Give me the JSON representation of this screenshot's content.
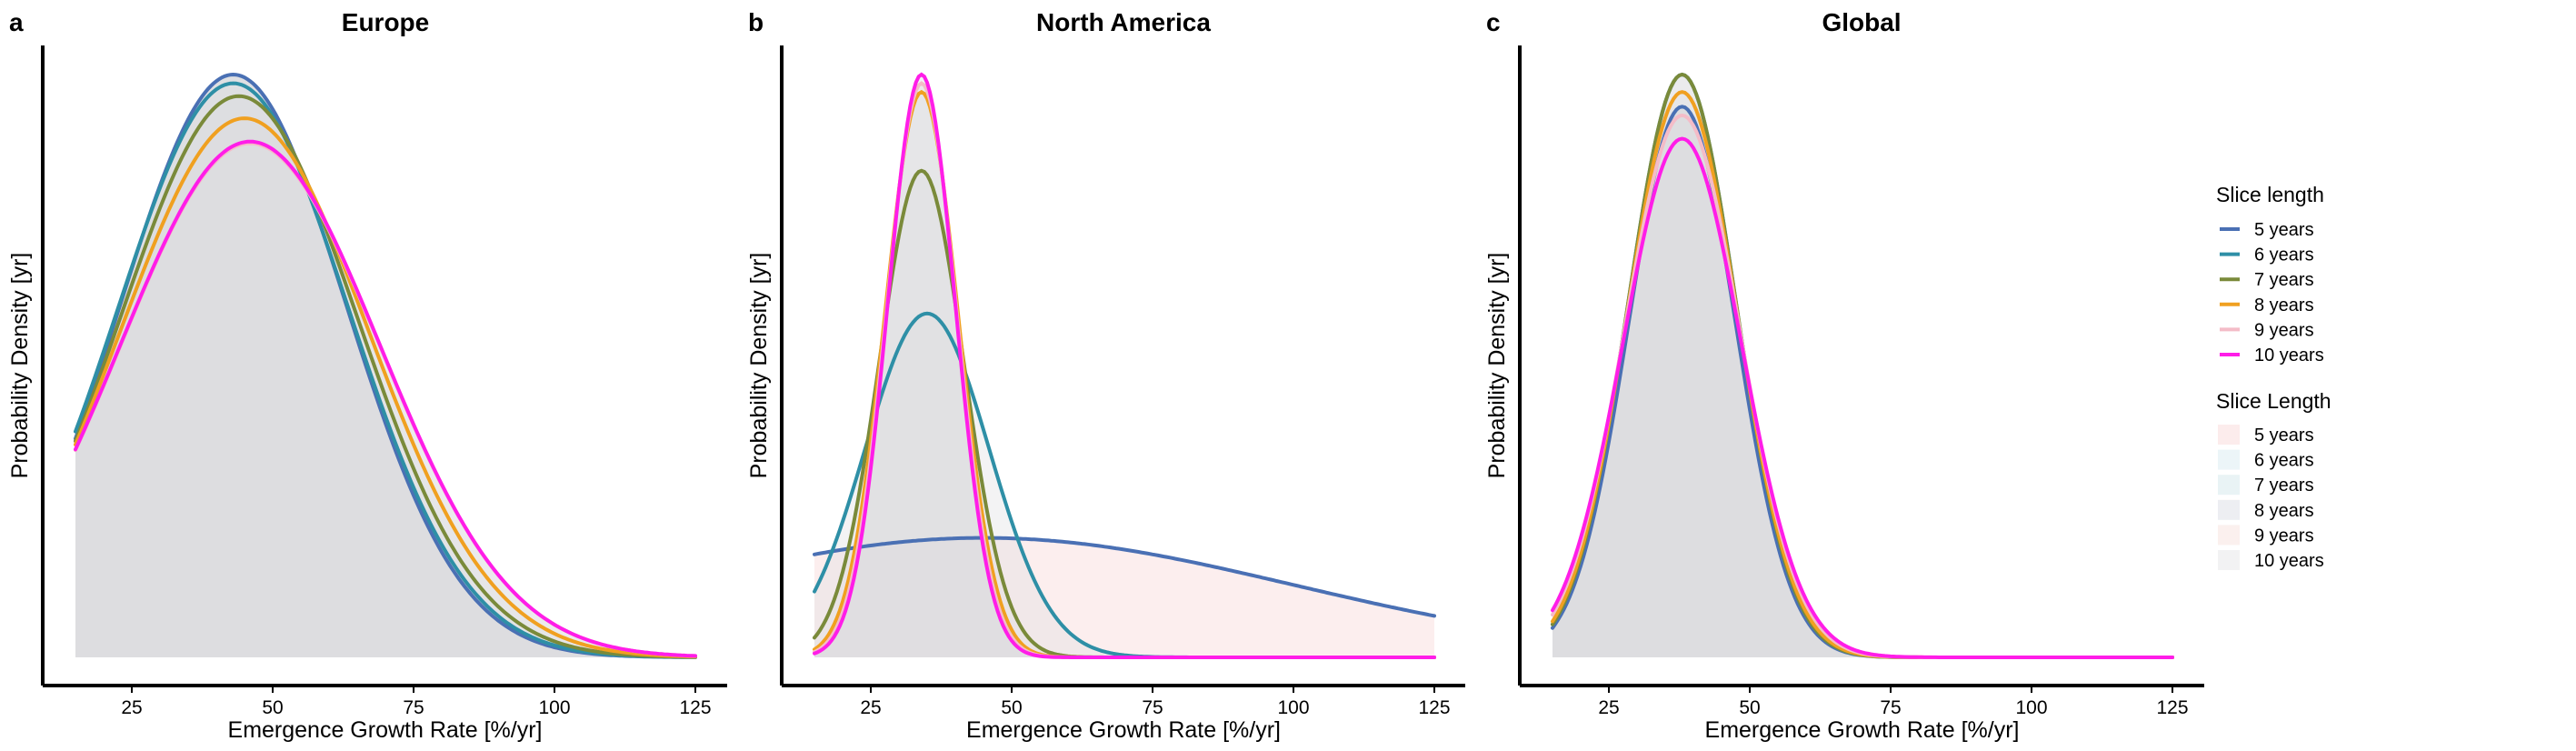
{
  "chart_data": [
    {
      "type": "area",
      "panel_label": "a",
      "title": "Europe",
      "xlabel": "Emergence Growth Rate [%/yr]",
      "ylabel": "Probability Density [yr]",
      "xlim": [
        15,
        125
      ],
      "xticks": [
        25,
        50,
        75,
        100,
        125
      ],
      "series": [
        {
          "name": "5 years",
          "mean": 43,
          "sd": 20,
          "peak": 1.0
        },
        {
          "name": "6 years",
          "mean": 43,
          "sd": 20.5,
          "peak": 0.985
        },
        {
          "name": "7 years",
          "mean": 44,
          "sd": 21,
          "peak": 0.963
        },
        {
          "name": "8 years",
          "mean": 45,
          "sd": 22,
          "peak": 0.925
        },
        {
          "name": "9 years",
          "mean": 46,
          "sd": 23,
          "peak": 0.882
        },
        {
          "name": "10 years",
          "mean": 46,
          "sd": 23,
          "peak": 0.885
        }
      ]
    },
    {
      "type": "area",
      "panel_label": "b",
      "title": "North America",
      "xlabel": "Emergence Growth Rate [%/yr]",
      "ylabel": "Probability Density [yr]",
      "xlim": [
        15,
        125
      ],
      "xticks": [
        25,
        50,
        75,
        100,
        125
      ],
      "series": [
        {
          "name": "5 years",
          "mean": 45,
          "sd": 55,
          "peak": 0.205
        },
        {
          "name": "6 years",
          "mean": 35,
          "sd": 11,
          "peak": 0.59
        },
        {
          "name": "7 years",
          "mean": 34,
          "sd": 7.5,
          "peak": 0.835
        },
        {
          "name": "8 years",
          "mean": 34,
          "sd": 6.5,
          "peak": 0.97
        },
        {
          "name": "9 years",
          "mean": 34,
          "sd": 6.2,
          "peak": 0.985
        },
        {
          "name": "10 years",
          "mean": 34,
          "sd": 6,
          "peak": 1.0
        }
      ]
    },
    {
      "type": "area",
      "panel_label": "c",
      "title": "Global",
      "xlabel": "Emergence Growth Rate [%/yr]",
      "ylabel": "Probability Density [yr]",
      "xlim": [
        15,
        125
      ],
      "xticks": [
        25,
        50,
        75,
        100,
        125
      ],
      "series": [
        {
          "name": "5 years",
          "mean": 38,
          "sd": 9.5,
          "peak": 0.945
        },
        {
          "name": "6 years",
          "mean": 38,
          "sd": 9.6,
          "peak": 1.0
        },
        {
          "name": "7 years",
          "mean": 38,
          "sd": 9.6,
          "peak": 1.0
        },
        {
          "name": "8 years",
          "mean": 38,
          "sd": 9.8,
          "peak": 0.97
        },
        {
          "name": "9 years",
          "mean": 38,
          "sd": 10.2,
          "peak": 0.93
        },
        {
          "name": "10 years",
          "mean": 38,
          "sd": 10.5,
          "peak": 0.89
        }
      ]
    }
  ],
  "legend": {
    "line_title": "Slice length",
    "fill_title": "Slice Length",
    "items": [
      "5 years",
      "6 years",
      "7 years",
      "8 years",
      "9 years",
      "10 years"
    ],
    "placement": "right"
  },
  "colors": {
    "lines": [
      "#4a70b4",
      "#2e8fa6",
      "#7a8a3a",
      "#f0a020",
      "#f4bcc8",
      "#ff1de8"
    ],
    "fills": [
      "#fcecec",
      "#ecf5f8",
      "#e9f3f5",
      "#edeef2",
      "#fbf0ee",
      "#f2f2f3"
    ],
    "density_fill": "#dcdde0"
  }
}
